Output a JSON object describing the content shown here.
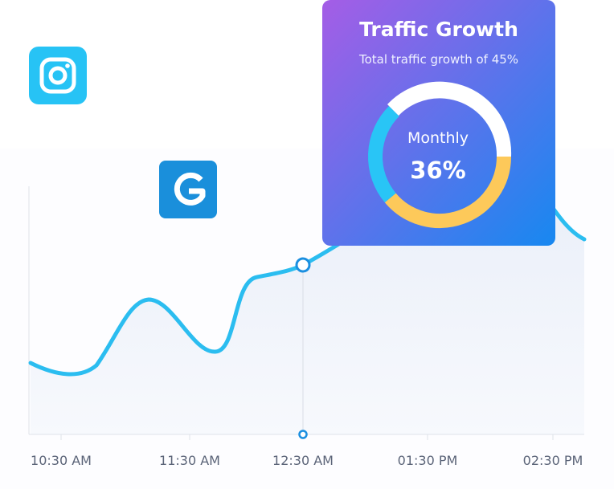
{
  "card": {
    "title": "Traffic Growth",
    "subtitle": "Total traffic growth of 45%",
    "donut_label": "Monthly",
    "donut_value": "36%"
  },
  "axis": {
    "labels": [
      "10:30 AM",
      "11:30 AM",
      "12:30 AM",
      "01:30 PM",
      "02:30 PM"
    ]
  }
}
